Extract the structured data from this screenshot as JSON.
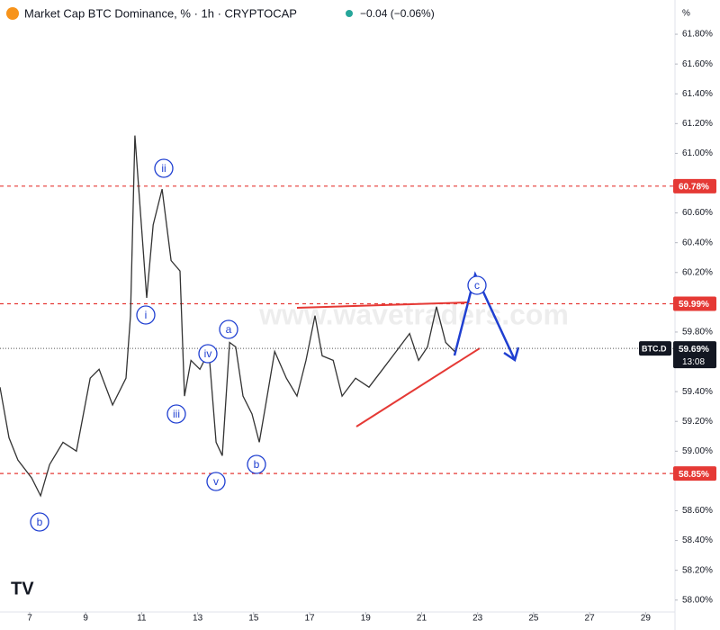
{
  "chart_data": {
    "type": "line",
    "title": "Market Cap BTC Dominance, % · 1h · CRYPTOCAP",
    "change_label": "−0.04 (−0.06%)",
    "axis_unit": "%",
    "watermark": "www.wavetraders.com",
    "x": [
      5.94,
      6.26,
      6.58,
      7.07,
      7.39,
      7.71,
      8.19,
      8.67,
      9.16,
      9.48,
      9.96,
      10.44,
      10.6,
      10.76,
      10.92,
      11.18,
      11.41,
      11.73,
      12.05,
      12.37,
      12.53,
      12.76,
      13.08,
      13.4,
      13.66,
      13.88,
      14.14,
      14.36,
      14.62,
      14.94,
      15.2,
      15.43,
      15.75,
      16.17,
      16.55,
      16.87,
      17.19,
      17.45,
      17.84,
      18.16,
      18.64,
      19.12,
      19.61,
      20.09,
      20.57,
      20.89,
      21.21,
      21.53,
      21.86,
      22.18
    ],
    "series": [
      {
        "name": "BTC.D",
        "color": "#333333",
        "values": [
          59.43,
          59.09,
          58.94,
          58.82,
          58.7,
          58.91,
          59.06,
          59.0,
          59.49,
          59.55,
          59.31,
          59.49,
          59.91,
          61.12,
          60.7,
          60.03,
          60.52,
          60.76,
          60.28,
          60.21,
          59.37,
          59.61,
          59.55,
          59.67,
          59.06,
          58.97,
          59.73,
          59.7,
          59.37,
          59.25,
          59.06,
          59.31,
          59.67,
          59.49,
          59.37,
          59.61,
          59.91,
          59.64,
          59.61,
          59.37,
          59.49,
          59.43,
          59.55,
          59.67,
          59.79,
          59.61,
          59.7,
          59.97,
          59.73,
          59.67
        ]
      }
    ],
    "xlim": [
      5.94,
      30.05
    ],
    "xticks": [
      7,
      9,
      11,
      13,
      15,
      17,
      19,
      21,
      23,
      25,
      27,
      29
    ],
    "ylim": [
      57.92,
      62.03
    ],
    "yticks": [
      {
        "value": 61.8,
        "label": "61.80%"
      },
      {
        "value": 61.6,
        "label": "61.60%"
      },
      {
        "value": 61.4,
        "label": "61.40%"
      },
      {
        "value": 61.2,
        "label": "61.20%"
      },
      {
        "value": 61.0,
        "label": "61.00%"
      },
      {
        "value": 60.6,
        "label": "60.60%"
      },
      {
        "value": 60.4,
        "label": "60.40%"
      },
      {
        "value": 60.2,
        "label": "60.20%"
      },
      {
        "value": 59.8,
        "label": "59.80%"
      },
      {
        "value": 59.4,
        "label": "59.40%"
      },
      {
        "value": 59.2,
        "label": "59.20%"
      },
      {
        "value": 59.0,
        "label": "59.00%"
      },
      {
        "value": 58.6,
        "label": "58.60%"
      },
      {
        "value": 58.4,
        "label": "58.40%"
      },
      {
        "value": 58.2,
        "label": "58.20%"
      },
      {
        "value": 58.0,
        "label": "58.00%"
      }
    ],
    "grid": false,
    "levels": [
      {
        "value": 60.78,
        "label": "60.78%"
      },
      {
        "value": 59.99,
        "label": "59.99%"
      },
      {
        "value": 58.85,
        "label": "58.85%"
      }
    ],
    "level_color": "#e53935",
    "last_price": {
      "value": 59.69,
      "label": "59.69%",
      "countdown": "13:08"
    },
    "wave_labels": [
      "b",
      "i",
      "ii",
      "iii",
      "iv",
      "v",
      "a",
      "b",
      "c"
    ]
  }
}
